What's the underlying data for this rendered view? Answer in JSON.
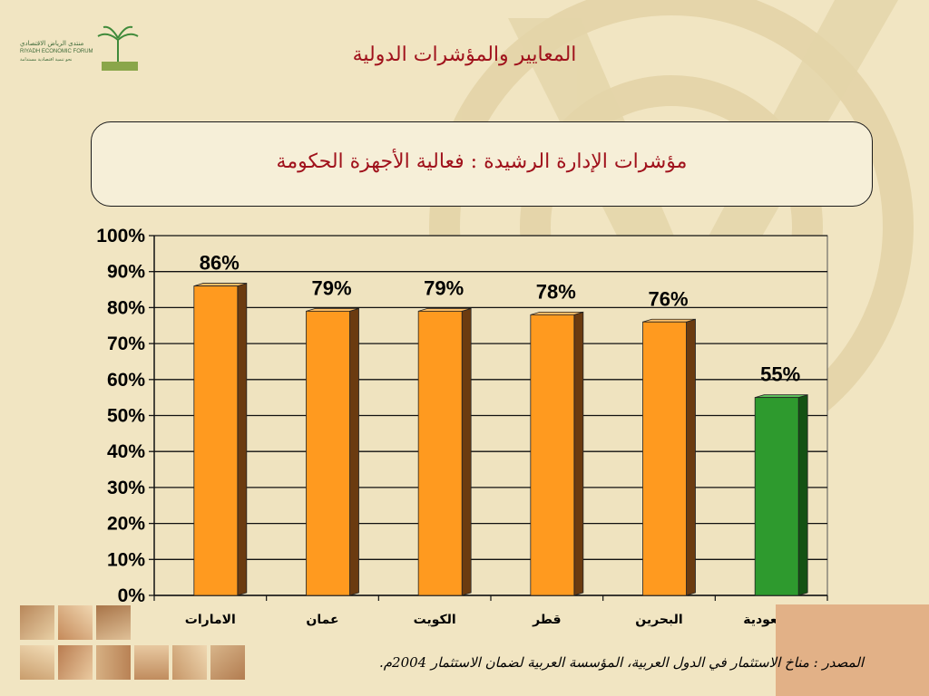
{
  "slide": {
    "title": "المعايير والمؤشرات الدولية",
    "logo": {
      "name_ar": "منتدى الرياض الاقتصادي",
      "name_en": "RIYADH ECONOMIC FORUM",
      "tagline": "نحو تنمية اقتصادية مستدامة"
    },
    "source_note": "المصدر : مناخ الاستثمار في الدول العربية، المؤسسة العربية لضمان الاستثمار 2004م.",
    "colors": {
      "title": "#a0121c",
      "bar_orange": "#ff9a1f",
      "bar_green": "#2e9a2e",
      "background": "#f1e5c2"
    }
  },
  "chart_data": {
    "type": "bar",
    "title": "مؤشرات الإدارة الرشيدة : فعالية الأجهزة الحكومة",
    "categories": [
      "الامارات",
      "عمان",
      "الكويت",
      "قطر",
      "البحرين",
      "السعودية"
    ],
    "values": [
      86,
      79,
      79,
      78,
      76,
      55
    ],
    "data_labels": [
      "86%",
      "79%",
      "79%",
      "78%",
      "76%",
      "55%"
    ],
    "highlight_category": "السعودية",
    "ylim": [
      0,
      100
    ],
    "yticks": [
      "0%",
      "10%",
      "20%",
      "30%",
      "40%",
      "50%",
      "60%",
      "70%",
      "80%",
      "90%",
      "100%"
    ],
    "grid": true,
    "xlabel": "",
    "ylabel": ""
  }
}
